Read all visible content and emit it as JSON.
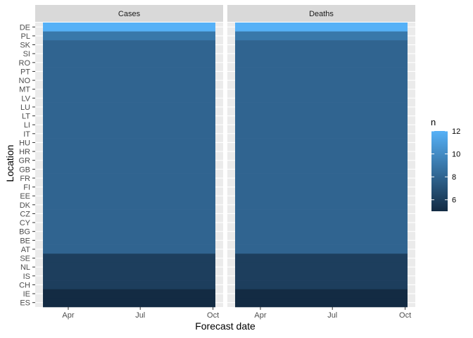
{
  "chart_data": {
    "type": "heatmap",
    "xlabel": "Forecast date",
    "ylabel": "Location",
    "x_ticks": [
      "Apr",
      "Jul",
      "Oct"
    ],
    "facets": [
      "Cases",
      "Deaths"
    ],
    "locations": [
      "DE",
      "PL",
      "SK",
      "SI",
      "RO",
      "PT",
      "NO",
      "MT",
      "LV",
      "LU",
      "LT",
      "LI",
      "IT",
      "HU",
      "HR",
      "GR",
      "GB",
      "FR",
      "FI",
      "EE",
      "DK",
      "CZ",
      "CY",
      "BG",
      "BE",
      "AT",
      "SE",
      "NL",
      "IS",
      "CH",
      "IE",
      "ES"
    ],
    "x_range": [
      "2021-03-08",
      "2021-10-04"
    ],
    "series": [
      {
        "facet": "Cases",
        "counts": [
          12,
          9,
          8,
          8,
          8,
          8,
          8,
          8,
          8,
          8,
          8,
          8,
          8,
          8,
          8,
          8,
          8,
          8,
          8,
          8,
          8,
          8,
          8,
          8,
          8,
          8,
          6,
          6,
          6,
          6,
          5,
          5
        ]
      },
      {
        "facet": "Deaths",
        "counts": [
          12,
          9,
          8,
          8,
          8,
          8,
          8,
          8,
          8,
          8,
          8,
          8,
          8,
          8,
          8,
          8,
          8,
          8,
          8,
          8,
          8,
          8,
          8,
          8,
          8,
          8,
          6,
          6,
          6,
          6,
          5,
          5
        ]
      }
    ],
    "legend": {
      "title": "n",
      "ticks": [
        6,
        8,
        10,
        12
      ],
      "range": [
        5,
        12
      ],
      "color_low": "#132B43",
      "color_high": "#56B1F7",
      "position": "right"
    },
    "grid": true,
    "colors": {
      "panel_background": "#EBEBEB",
      "strip_background": "#D9D9D9",
      "grid": "#FFFFFF"
    }
  }
}
